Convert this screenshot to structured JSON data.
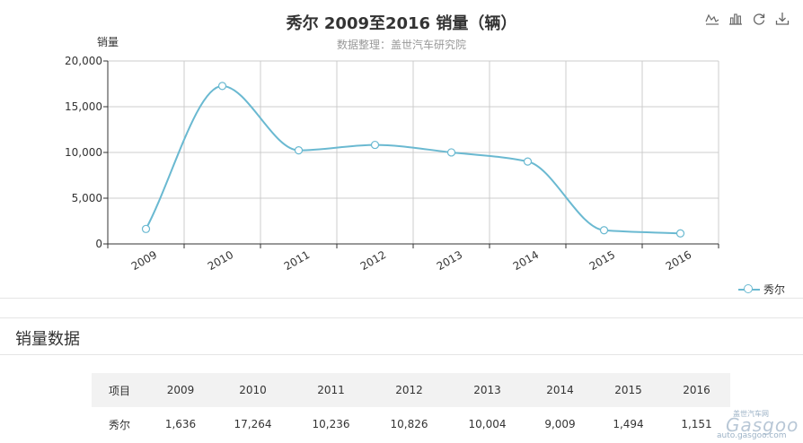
{
  "chart_data": {
    "type": "line",
    "smooth": true,
    "title": "秀尔 2009至2016 销量（辆）",
    "subtitle": "数据整理：盖世汽车研究院",
    "ylabel": "销量",
    "xlabel": "",
    "categories": [
      "2009",
      "2010",
      "2011",
      "2012",
      "2013",
      "2014",
      "2015",
      "2016"
    ],
    "series": [
      {
        "name": "秀尔",
        "values": [
          1636,
          17264,
          10236,
          10826,
          10004,
          9009,
          1494,
          1151
        ],
        "color": "#6ab9d1"
      }
    ],
    "ylim": [
      0,
      20000
    ],
    "yticks": [
      0,
      5000,
      10000,
      15000,
      20000
    ],
    "ytick_labels": [
      "0",
      "5,000",
      "10,000",
      "15,000",
      "20,000"
    ],
    "grid": true,
    "legend_position": "bottom-right"
  },
  "toolbox": [
    "line-chart-icon",
    "bar-chart-icon",
    "refresh-icon",
    "download-icon"
  ],
  "section_title": "销量数据",
  "table": {
    "headers": [
      "项目",
      "2009",
      "2010",
      "2011",
      "2012",
      "2013",
      "2014",
      "2015",
      "2016"
    ],
    "rows": [
      [
        "秀尔",
        "1,636",
        "17,264",
        "10,236",
        "10,826",
        "10,004",
        "9,009",
        "1,494",
        "1,151"
      ]
    ]
  },
  "watermark": {
    "top": "盖世汽车网",
    "main": "Gasgoo",
    "url": "auto.gasgoo.com"
  }
}
